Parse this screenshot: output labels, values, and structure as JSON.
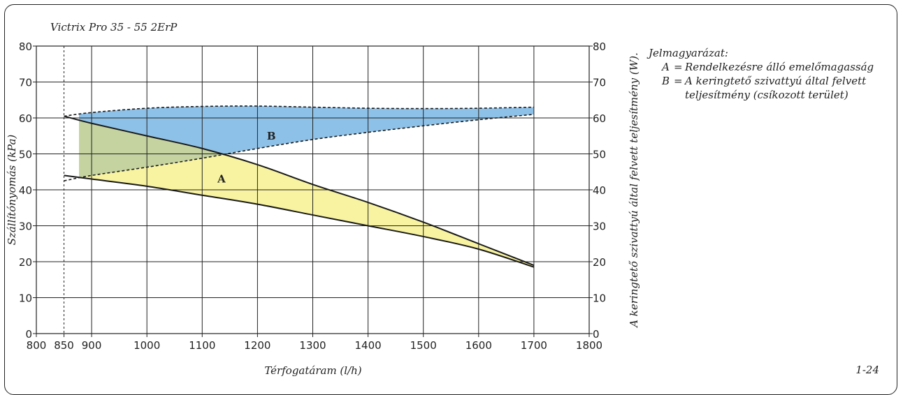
{
  "title": "Victrix Pro 35 - 55 2ErP",
  "figure_number": "1-24",
  "legend": {
    "heading": "Jelmagyarázat:",
    "items": [
      {
        "key": "A",
        "eq": "=",
        "lines": [
          "Rendelkezésre álló emelőmagasság"
        ]
      },
      {
        "key": "B",
        "eq": "=",
        "lines": [
          "A keringtető szivattyú által felvett",
          "teljesítmény (csíkozott terület)"
        ]
      }
    ]
  },
  "colors": {
    "area_a": "#f8f3a0",
    "area_b": "#8ec1e8",
    "overlap": "#c4d3a0",
    "line": "#1a1a1a",
    "grid": "#222222"
  },
  "chart_data": {
    "type": "area",
    "title": "Victrix Pro 35 - 55 2ErP",
    "xlabel": "Térfogatáram (l/h)",
    "ylabel": "Szállítónyomás (kPa)",
    "y2label": "A keringtető szivattyú által felvett teljesítmény (W).",
    "xlim": [
      800,
      1800
    ],
    "ylim": [
      0,
      80
    ],
    "y2lim": [
      0,
      80
    ],
    "x_ticks": [
      800,
      850,
      900,
      1000,
      1100,
      1200,
      1300,
      1400,
      1500,
      1600,
      1700,
      1800
    ],
    "y_ticks": [
      0,
      10,
      20,
      30,
      40,
      50,
      60,
      70,
      80
    ],
    "y2_ticks": [
      0,
      10,
      20,
      30,
      40,
      50,
      60,
      70,
      80
    ],
    "vertical_dashed_at": 850,
    "grid": true,
    "series": [
      {
        "name": "A",
        "axis": "left",
        "upper": {
          "x": [
            850,
            900,
            1000,
            1100,
            1200,
            1300,
            1400,
            1500,
            1600,
            1700
          ],
          "y": [
            60.5,
            58.5,
            55.0,
            51.5,
            47.0,
            41.5,
            36.5,
            31.0,
            25.0,
            19.0
          ]
        },
        "lower": {
          "x": [
            850,
            900,
            1000,
            1100,
            1200,
            1300,
            1400,
            1500,
            1600,
            1700
          ],
          "y": [
            44.0,
            43.0,
            41.0,
            38.5,
            36.0,
            33.0,
            30.0,
            27.0,
            23.5,
            18.5
          ]
        }
      },
      {
        "name": "B",
        "axis": "right",
        "upper": {
          "x": [
            850,
            900,
            1000,
            1100,
            1200,
            1300,
            1400,
            1500,
            1600,
            1700
          ],
          "y": [
            60.5,
            61.5,
            62.7,
            63.2,
            63.3,
            63.0,
            62.7,
            62.6,
            62.7,
            63.0
          ]
        },
        "lower": {
          "x": [
            850,
            900,
            1000,
            1100,
            1200,
            1300,
            1400,
            1500,
            1600,
            1700
          ],
          "y": [
            42.5,
            44.0,
            46.3,
            48.8,
            51.5,
            54.0,
            56.0,
            57.8,
            59.5,
            61.0
          ]
        }
      }
    ],
    "annotations": [
      {
        "text": "A",
        "x": 1135,
        "y": 43
      },
      {
        "text": "B",
        "x": 1225,
        "y": 55
      }
    ]
  }
}
